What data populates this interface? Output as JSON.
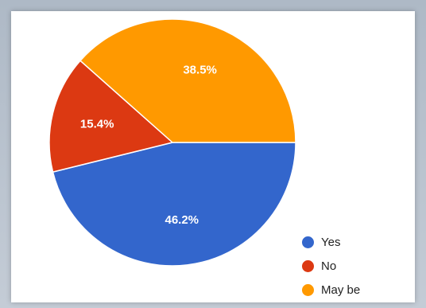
{
  "chart_data": {
    "type": "pie",
    "title": "",
    "start_angle_deg": 0,
    "direction": "clockwise",
    "slices": [
      {
        "label": "Yes",
        "value": 46.2,
        "label_text": "46.2%",
        "color": "#3366cc"
      },
      {
        "label": "No",
        "value": 15.4,
        "label_text": "15.4%",
        "color": "#dc3912"
      },
      {
        "label": "May be",
        "value": 38.5,
        "label_text": "38.5%",
        "color": "#ff9900"
      }
    ],
    "legend": {
      "placement": "bottom-right",
      "entries": [
        "Yes",
        "No",
        "May be"
      ]
    }
  }
}
